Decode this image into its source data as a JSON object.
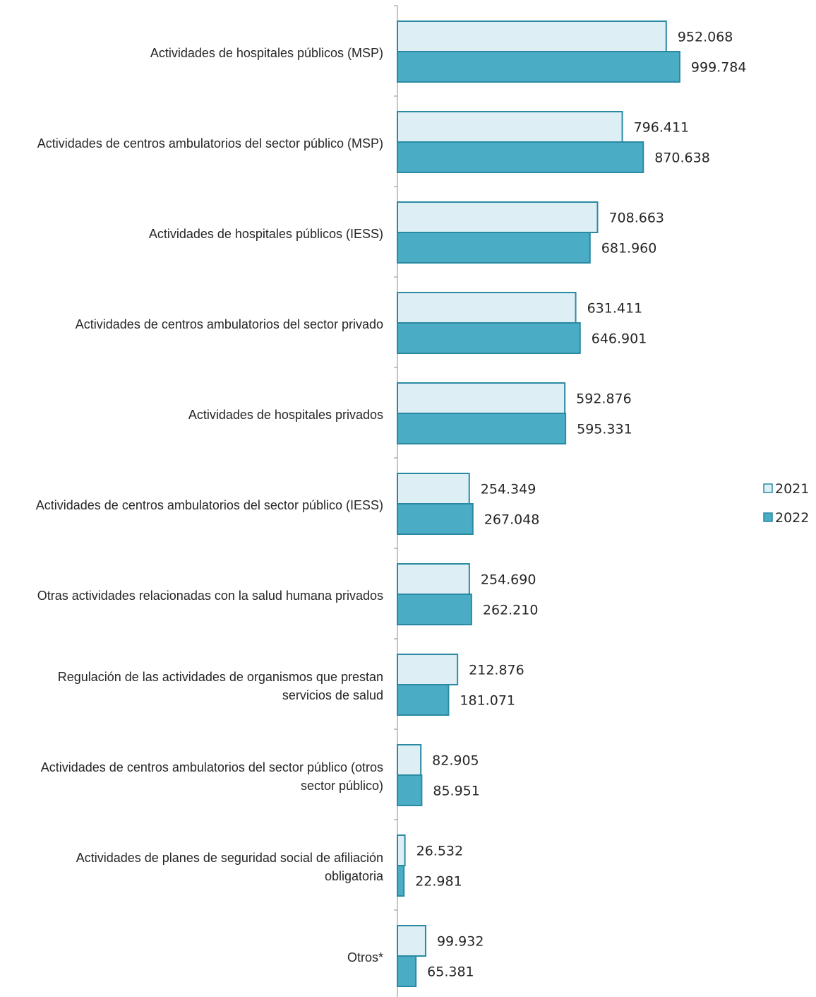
{
  "chart_data": {
    "type": "bar",
    "orientation": "horizontal",
    "categories": [
      [
        "Actividades de hospitales públicos (MSP)"
      ],
      [
        "Actividades de centros ambulatorios del sector público (MSP)"
      ],
      [
        "Actividades de hospitales públicos (IESS)"
      ],
      [
        "Actividades de centros ambulatorios del sector privado"
      ],
      [
        "Actividades de hospitales privados"
      ],
      [
        "Actividades de centros ambulatorios del sector público (IESS)"
      ],
      [
        "Otras actividades relacionadas con la salud humana privados"
      ],
      [
        "Regulación de las actividades de organismos que prestan",
        "servicios de salud"
      ],
      [
        "Actividades de centros ambulatorios del sector público (otros",
        "sector público)"
      ],
      [
        "Actividades de planes de seguridad social de afiliación",
        "obligatoria"
      ],
      [
        "Otros*"
      ]
    ],
    "series": [
      {
        "name": "2021",
        "color": "#DDEFF5",
        "stroke": "#2B8AA3",
        "values": [
          952068,
          796411,
          708663,
          631411,
          592876,
          254349,
          254690,
          212876,
          82905,
          26532,
          99932
        ],
        "labels": [
          "952.068",
          "796.411",
          "708.663",
          "631.411",
          "592.876",
          "254.349",
          "254.690",
          "212.876",
          "82.905",
          "26.532",
          "99.932"
        ]
      },
      {
        "name": "2022",
        "color": "#4BACC6",
        "stroke": "#2B8AA3",
        "values": [
          999784,
          870638,
          681960,
          646901,
          595331,
          267048,
          262210,
          181071,
          85951,
          22981,
          65381
        ],
        "labels": [
          "999.784",
          "870.638",
          "681.960",
          "646.901",
          "595.331",
          "267.048",
          "262.210",
          "181.071",
          "85.951",
          "22.981",
          "65.381"
        ]
      }
    ],
    "xlim": [
      0,
      1000000
    ],
    "legend_position": "right",
    "grid": false,
    "data_labels": true
  }
}
